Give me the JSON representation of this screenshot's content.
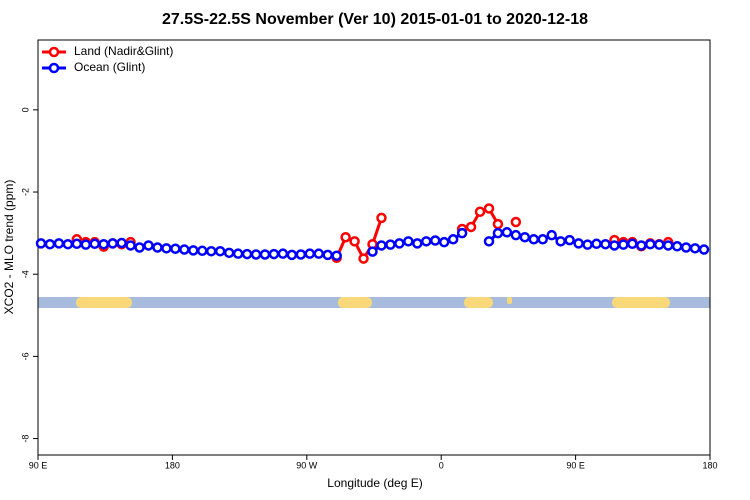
{
  "chart_data": {
    "type": "line",
    "title": "27.5S-22.5S November (Ver 10)   2015-01-01 to 2020-12-18",
    "x_label": "Longitude (deg E)",
    "y_label": "XCO2 - MLO trend (ppm)",
    "xlim": [
      90,
      540
    ],
    "xticks": [
      {
        "value": 90,
        "label": "90 E"
      },
      180,
      {
        "value": 270,
        "label": "90 W"
      },
      {
        "value": 360,
        "label": "0"
      },
      {
        "value": 450,
        "label": "90 E"
      },
      {
        "value": 540,
        "label": "180"
      }
    ],
    "ylim": [
      -8.4,
      1.7
    ],
    "yticks": [
      -8,
      -6,
      -4,
      -2,
      0
    ],
    "legend": "top-left",
    "x": [
      92,
      98,
      104,
      110,
      116,
      122,
      128,
      134,
      140,
      146,
      152,
      158,
      164,
      170,
      176,
      182,
      188,
      194,
      200,
      206,
      212,
      218,
      224,
      230,
      236,
      242,
      248,
      254,
      260,
      266,
      272,
      278,
      284,
      290,
      296,
      302,
      308,
      314,
      320,
      326,
      332,
      338,
      344,
      350,
      356,
      362,
      368,
      374,
      380,
      386,
      392,
      398,
      404,
      410,
      416,
      422,
      428,
      434,
      440,
      446,
      452,
      458,
      464,
      470,
      476,
      482,
      488,
      494,
      500,
      506,
      512,
      518,
      524,
      530,
      536
    ],
    "series": [
      {
        "name": "Land (Nadir&Glint)",
        "color": "#ff0000",
        "values": [
          null,
          null,
          null,
          null,
          -3.15,
          -3.22,
          -3.22,
          -3.33,
          -3.25,
          -3.27,
          -3.22,
          null,
          null,
          null,
          null,
          null,
          null,
          null,
          null,
          null,
          null,
          null,
          null,
          null,
          null,
          null,
          null,
          null,
          null,
          null,
          null,
          null,
          null,
          -3.6,
          -3.1,
          -3.2,
          -3.62,
          -3.27,
          -2.63,
          null,
          null,
          null,
          null,
          null,
          null,
          null,
          null,
          -2.9,
          -2.85,
          -2.48,
          -2.4,
          -2.78,
          null,
          -2.73,
          null,
          null,
          null,
          null,
          null,
          null,
          null,
          null,
          null,
          null,
          -3.17,
          -3.22,
          -3.22,
          -3.32,
          -3.25,
          -3.27,
          -3.22,
          null,
          null,
          null,
          null
        ]
      },
      {
        "name": "Ocean (Glint)",
        "color": "#0000ff",
        "values": [
          -3.25,
          -3.27,
          -3.25,
          -3.27,
          -3.26,
          -3.28,
          -3.26,
          -3.27,
          -3.25,
          -3.24,
          -3.3,
          -3.35,
          -3.3,
          -3.35,
          -3.37,
          -3.38,
          -3.4,
          -3.42,
          -3.43,
          -3.44,
          -3.44,
          -3.48,
          -3.5,
          -3.51,
          -3.52,
          -3.52,
          -3.51,
          -3.5,
          -3.53,
          -3.52,
          -3.5,
          -3.5,
          -3.53,
          -3.55,
          null,
          null,
          null,
          -3.45,
          -3.3,
          -3.28,
          -3.25,
          -3.2,
          -3.25,
          -3.2,
          -3.18,
          -3.22,
          -3.15,
          -3.0,
          null,
          null,
          -3.2,
          -3.0,
          -2.98,
          -3.05,
          -3.1,
          -3.15,
          -3.15,
          -3.05,
          -3.2,
          -3.17,
          -3.25,
          -3.28,
          -3.26,
          -3.27,
          -3.3,
          -3.28,
          -3.26,
          -3.3,
          -3.27,
          -3.28,
          -3.3,
          -3.32,
          -3.35,
          -3.37,
          -3.4
        ]
      }
    ]
  }
}
